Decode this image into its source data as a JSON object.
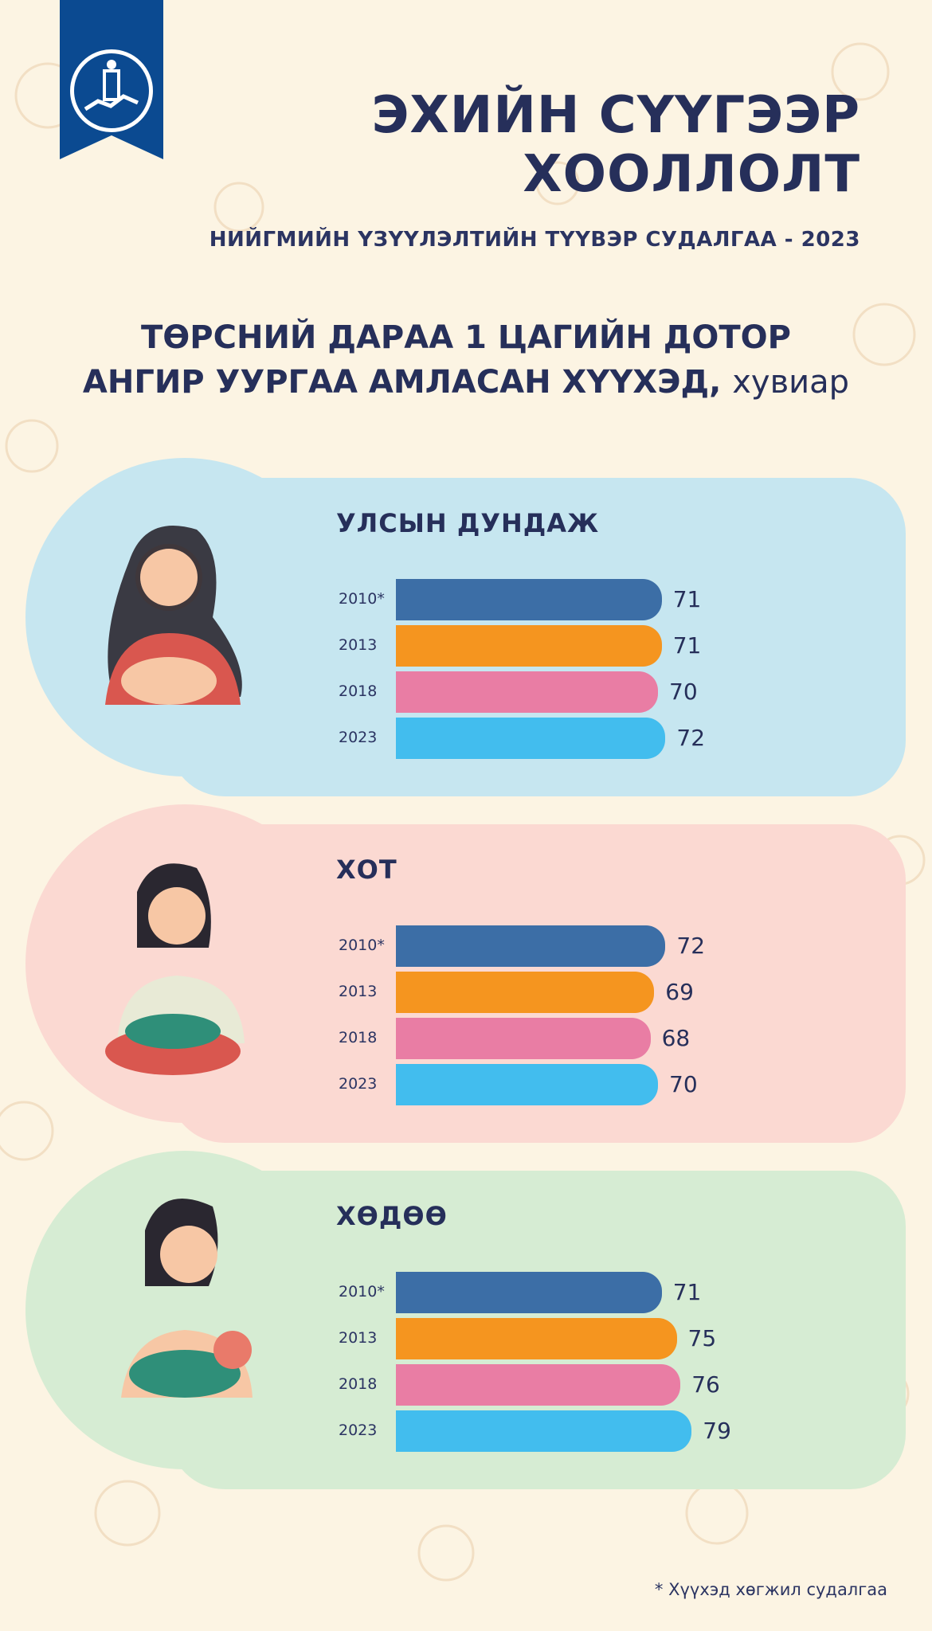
{
  "header": {
    "title_line1": "ЭХИЙН СҮҮГЭЭР",
    "title_line2": "ХООЛЛОЛТ",
    "subtitle": "НИЙГМИЙН ҮЗҮҮЛЭЛТИЙН ТҮҮВЭР СУДАЛГАА - 2023",
    "logo_icon": "soyombo-emblem-icon"
  },
  "heading": {
    "line1": "ТӨРСНИЙ ДАРАА 1 ЦАГИЙН ДОТОР",
    "line2": "АНГИР УУРГАА АМЛАСАН ХҮҮХЭД,",
    "unit": "хувиар"
  },
  "chart_data": [
    {
      "type": "bar",
      "title": "УЛСЫН ДУНДАЖ",
      "categories": [
        "2010*",
        "2013",
        "2018",
        "2023"
      ],
      "values": [
        71,
        71,
        70,
        72
      ]
    },
    {
      "type": "bar",
      "title": "ХОТ",
      "categories": [
        "2010*",
        "2013",
        "2018",
        "2023"
      ],
      "values": [
        72,
        69,
        68,
        70
      ]
    },
    {
      "type": "bar",
      "title": "ХӨДӨӨ",
      "categories": [
        "2010*",
        "2013",
        "2018",
        "2023"
      ],
      "values": [
        71,
        75,
        76,
        79
      ]
    }
  ],
  "colors": {
    "bars": [
      "#3c6ea6",
      "#f5951f",
      "#e97da4",
      "#42bdee"
    ],
    "panel_backgrounds": [
      "#c6e6f0",
      "#fbd9d2",
      "#d6ecd3"
    ],
    "title": "#262f5a",
    "flag": "#0b4a91"
  },
  "footnote": "* Хүүхэд хөгжил судалгаа"
}
